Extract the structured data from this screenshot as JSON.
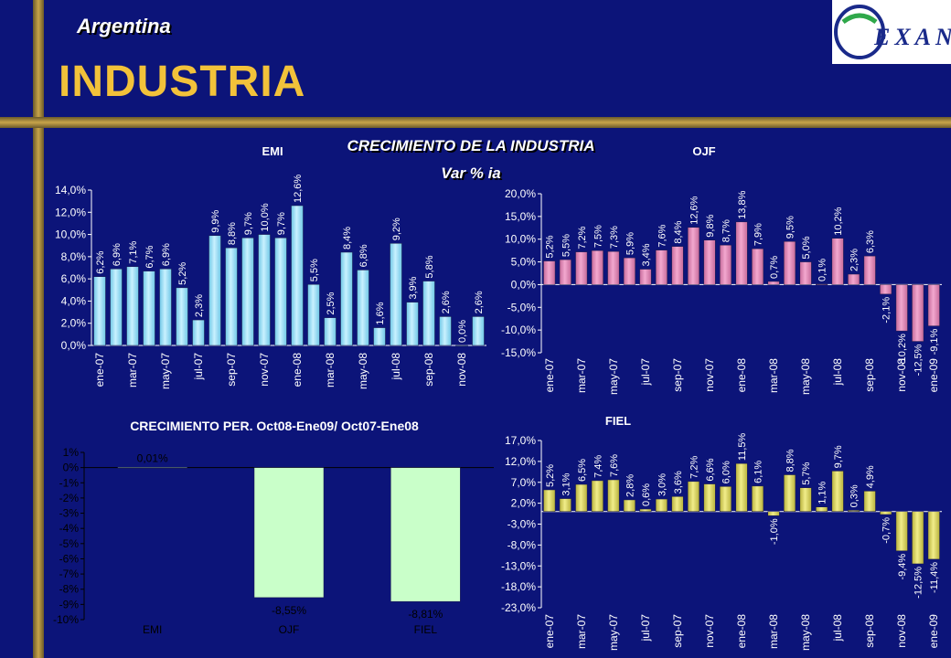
{
  "header": {
    "country": "Argentina",
    "title": "INDUSTRIA",
    "heading": "CRECIMIENTO  DE LA INDUSTRIA",
    "subheading": "Var % ia",
    "logo_text": "EXANTE"
  },
  "colors": {
    "background": "#0c1479",
    "accent": "#f2c23a",
    "emi_bar": "#c9f1ff",
    "ojf_bar": "#f3a8cf",
    "fiel_bar": "#f1ed8a",
    "summary_bar": "#c9ffc9"
  },
  "chart_data": [
    {
      "id": "emi",
      "type": "bar",
      "title": "EMI",
      "categories": [
        "ene-07",
        "feb-07",
        "mar-07",
        "abr-07",
        "may-07",
        "jun-07",
        "jul-07",
        "ago-07",
        "sep-07",
        "oct-07",
        "nov-07",
        "dic-07",
        "ene-08",
        "feb-08",
        "mar-08",
        "abr-08",
        "may-08",
        "jun-08",
        "jul-08",
        "ago-08",
        "sep-08",
        "oct-08",
        "nov-08",
        "dic-08"
      ],
      "tick_labels": [
        "ene-07",
        "",
        "mar-07",
        "",
        "may-07",
        "",
        "jul-07",
        "",
        "sep-07",
        "",
        "nov-07",
        "",
        "ene-08",
        "",
        "mar-08",
        "",
        "may-08",
        "",
        "jul-08",
        "",
        "sep-08",
        "",
        "nov-08",
        ""
      ],
      "values": [
        6.2,
        6.9,
        7.1,
        6.7,
        6.9,
        5.2,
        2.3,
        9.9,
        8.8,
        9.7,
        10.0,
        9.7,
        12.6,
        5.5,
        2.5,
        8.4,
        6.8,
        1.6,
        9.2,
        3.9,
        5.8,
        2.6,
        0.0,
        2.6
      ],
      "labels": [
        "6,2%",
        "6,9%",
        "7,1%",
        "6,7%",
        "6,9%",
        "5,2%",
        "2,3%",
        "9,9%",
        "8,8%",
        "9,7%",
        "10,0%",
        "9,7%",
        "12,6%",
        "5,5%",
        "2,5%",
        "8,4%",
        "6,8%",
        "1,6%",
        "9,2%",
        "3,9%",
        "5,8%",
        "2,6%",
        "0,0%",
        "2,6%"
      ],
      "ylim": [
        0,
        14
      ],
      "yticks": [
        0,
        2,
        4,
        6,
        8,
        10,
        12,
        14
      ],
      "ytick_labels": [
        "0,0%",
        "2,0%",
        "4,0%",
        "6,0%",
        "8,0%",
        "10,0%",
        "12,0%",
        "14,0%"
      ]
    },
    {
      "id": "ojf",
      "type": "bar",
      "title": "OJF",
      "categories": [
        "ene-07",
        "feb-07",
        "mar-07",
        "abr-07",
        "may-07",
        "jun-07",
        "jul-07",
        "ago-07",
        "sep-07",
        "oct-07",
        "nov-07",
        "dic-07",
        "ene-08",
        "feb-08",
        "mar-08",
        "abr-08",
        "may-08",
        "jun-08",
        "jul-08",
        "ago-08",
        "sep-08",
        "oct-08",
        "nov-08",
        "dic-08",
        "ene-09"
      ],
      "tick_labels": [
        "ene-07",
        "",
        "mar-07",
        "",
        "may-07",
        "",
        "jul-07",
        "",
        "sep-07",
        "",
        "nov-07",
        "",
        "ene-08",
        "",
        "mar-08",
        "",
        "may-08",
        "",
        "jul-08",
        "",
        "sep-08",
        "",
        "nov-08",
        "",
        "ene-09"
      ],
      "values": [
        5.2,
        5.5,
        7.2,
        7.5,
        7.3,
        5.9,
        3.4,
        7.6,
        8.4,
        12.6,
        9.8,
        8.7,
        13.8,
        7.9,
        0.7,
        9.5,
        5.0,
        0.1,
        10.2,
        2.3,
        6.3,
        -2.1,
        -10.2,
        -12.5,
        -9.1
      ],
      "labels": [
        "5,2%",
        "5,5%",
        "7,2%",
        "7,5%",
        "7,3%",
        "5,9%",
        "3,4%",
        "7,6%",
        "8,4%",
        "12,6%",
        "9,8%",
        "8,7%",
        "13,8%",
        "7,9%",
        "0,7%",
        "9,5%",
        "5,0%",
        "0,1%",
        "10,2%",
        "2,3%",
        "6,3%",
        "-2,1%",
        "-10,2%",
        "-12,5%",
        "-9,1%"
      ],
      "ylim": [
        -15,
        20
      ],
      "yticks": [
        -15,
        -10,
        -5,
        0,
        5,
        10,
        15,
        20
      ],
      "ytick_labels": [
        "-15,0%",
        "-10,0%",
        "-5,0%",
        "0,0%",
        "5,0%",
        "10,0%",
        "15,0%",
        "20,0%"
      ]
    },
    {
      "id": "summary",
      "type": "bar",
      "title": "CRECIMIENTO PER. Oct08-Ene09/ Oct07-Ene08",
      "categories": [
        "EMI",
        "OJF",
        "FIEL"
      ],
      "tick_labels": [
        "EMI",
        "OJF",
        "FIEL"
      ],
      "values": [
        0.01,
        -8.55,
        -8.81
      ],
      "labels": [
        "0,01%",
        "-8,55%",
        "-8,81%"
      ],
      "ylim": [
        -10,
        1
      ],
      "yticks": [
        -10,
        -9,
        -8,
        -7,
        -6,
        -5,
        -4,
        -3,
        -2,
        -1,
        0,
        1
      ],
      "ytick_labels": [
        "-10%",
        "-9%",
        "-8%",
        "-7%",
        "-6%",
        "-5%",
        "-4%",
        "-3%",
        "-2%",
        "-1%",
        "0%",
        "1%"
      ]
    },
    {
      "id": "fiel",
      "type": "bar",
      "title": "FIEL",
      "categories": [
        "ene-07",
        "feb-07",
        "mar-07",
        "abr-07",
        "may-07",
        "jun-07",
        "jul-07",
        "ago-07",
        "sep-07",
        "oct-07",
        "nov-07",
        "dic-07",
        "ene-08",
        "feb-08",
        "mar-08",
        "abr-08",
        "may-08",
        "jun-08",
        "jul-08",
        "ago-08",
        "sep-08",
        "oct-08",
        "nov-08",
        "dic-08",
        "ene-09"
      ],
      "tick_labels": [
        "ene-07",
        "",
        "mar-07",
        "",
        "may-07",
        "",
        "jul-07",
        "",
        "sep-07",
        "",
        "nov-07",
        "",
        "ene-08",
        "",
        "mar-08",
        "",
        "may-08",
        "",
        "jul-08",
        "",
        "sep-08",
        "",
        "nov-08",
        "",
        "ene-09"
      ],
      "values": [
        5.2,
        3.1,
        6.5,
        7.4,
        7.6,
        2.8,
        0.6,
        3.0,
        3.6,
        7.2,
        6.6,
        6.0,
        11.5,
        6.1,
        -1.0,
        8.8,
        5.7,
        1.1,
        9.7,
        0.3,
        4.9,
        -0.7,
        -9.4,
        -12.5,
        -11.4
      ],
      "labels": [
        "5,2%",
        "3,1%",
        "6,5%",
        "7,4%",
        "7,6%",
        "2,8%",
        "0,6%",
        "3,0%",
        "3,6%",
        "7,2%",
        "6,6%",
        "6,0%",
        "11,5%",
        "6,1%",
        "-1,0%",
        "8,8%",
        "5,7%",
        "1,1%",
        "9,7%",
        "0,3%",
        "4,9%",
        "-0,7%",
        "-9,4%",
        "-12,5%",
        "-11,4%"
      ],
      "ylim": [
        -23,
        17
      ],
      "yticks": [
        -23,
        -18,
        -13,
        -8,
        -3,
        2,
        7,
        12,
        17
      ],
      "ytick_labels": [
        "-23,0%",
        "-18,0%",
        "-13,0%",
        "-8,0%",
        "-3,0%",
        "2,0%",
        "7,0%",
        "12,0%",
        "17,0%"
      ]
    }
  ]
}
